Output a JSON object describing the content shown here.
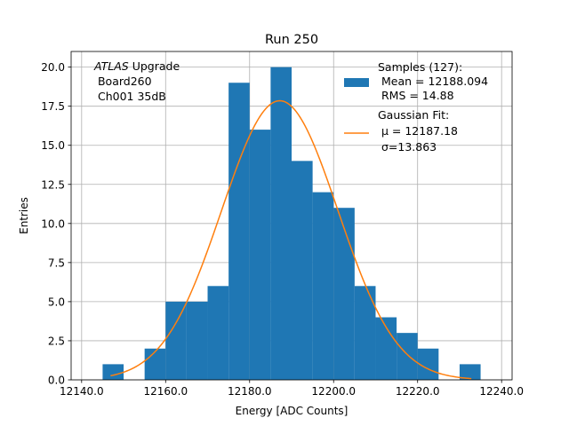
{
  "chart_data": {
    "type": "bar",
    "title": "Run 250",
    "xlabel": "Energy [ADC Counts]",
    "ylabel": "Entries",
    "xlim": [
      12137.5,
      12242.5
    ],
    "ylim": [
      0,
      21
    ],
    "x_ticks": [
      12140,
      12160,
      12180,
      12200,
      12220,
      12240
    ],
    "x_tick_labels": [
      "12140.0",
      "12160.0",
      "12180.0",
      "12200.0",
      "12220.0",
      "12240.0"
    ],
    "y_ticks": [
      0,
      2.5,
      5,
      7.5,
      10,
      12.5,
      15,
      17.5,
      20
    ],
    "y_tick_labels": [
      "0.0",
      "2.5",
      "5.0",
      "7.5",
      "10.0",
      "12.5",
      "15.0",
      "17.5",
      "20.0"
    ],
    "grid": true,
    "legend_position": "top-right",
    "bin_edges": [
      12145,
      12150,
      12155,
      12160,
      12165,
      12170,
      12175,
      12180,
      12185,
      12190,
      12195,
      12200,
      12205,
      12210,
      12215,
      12220,
      12225,
      12230,
      12235
    ],
    "counts": [
      1,
      0,
      2,
      5,
      5,
      6,
      19,
      16,
      20,
      14,
      12,
      11,
      6,
      4,
      3,
      2,
      0,
      1
    ],
    "series": [
      {
        "name": "Samples (127):",
        "type": "histogram",
        "color": "#1f77b4",
        "legend_lines": [
          "Samples (127):",
          " Mean = 12188.094",
          " RMS = 14.88"
        ]
      },
      {
        "name": "Gaussian Fit:",
        "type": "line",
        "color": "#ff7f0e",
        "amplitude": 17.85,
        "mu": 12187.18,
        "sigma": 13.863,
        "x_range": [
          12146.9,
          12232.8
        ],
        "legend_lines": [
          "Gaussian Fit:",
          " μ = 12187.18",
          " σ=13.863"
        ]
      }
    ],
    "annotation": {
      "italic_part": "ATLAS",
      "upright_part": " Upgrade",
      "line2": " Board260",
      "line3": " Ch001 35dB"
    }
  }
}
